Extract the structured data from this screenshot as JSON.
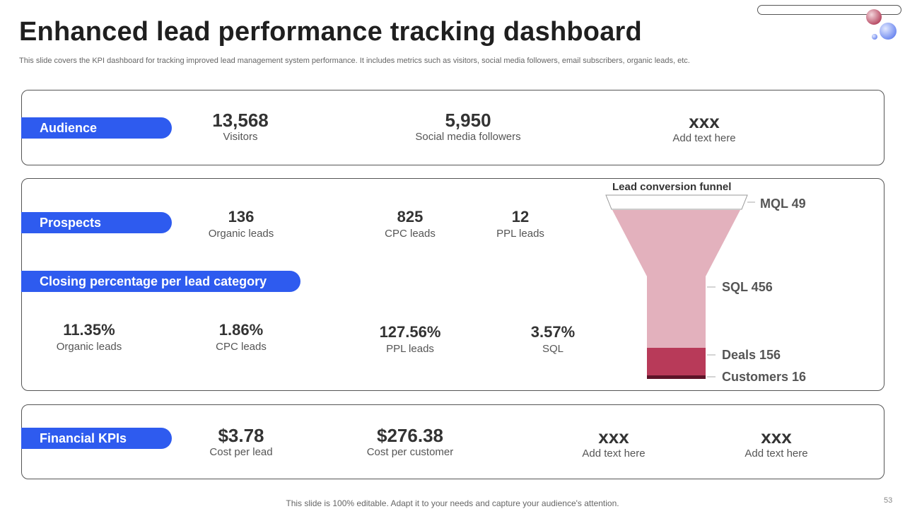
{
  "header": {
    "title": "Enhanced lead performance tracking dashboard",
    "subtitle": "This slide covers the KPI dashboard for tracking improved lead management system performance. It includes metrics such as visitors, social media followers, email subscribers, organic leads, etc."
  },
  "audience": {
    "label": "Audience",
    "metrics": [
      {
        "value": "13,568",
        "label": "Visitors"
      },
      {
        "value": "5,950",
        "label": "Social media followers"
      },
      {
        "value": "xxx",
        "label": "Add text here"
      }
    ]
  },
  "prospects": {
    "label": "Prospects",
    "metrics": [
      {
        "value": "136",
        "label": "Organic leads"
      },
      {
        "value": "825",
        "label": "CPC leads"
      },
      {
        "value": "12",
        "label": "PPL leads"
      }
    ]
  },
  "closing": {
    "label": "Closing percentage per lead category",
    "metrics": [
      {
        "value": "11.35%",
        "label": "Organic leads"
      },
      {
        "value": "1.86%",
        "label": "CPC leads"
      },
      {
        "value": "127.56%",
        "label": "PPL leads"
      },
      {
        "value": "3.57%",
        "label": "SQL"
      }
    ]
  },
  "funnel": {
    "title": "Lead conversion funnel",
    "stages": [
      {
        "label": "MQL 49"
      },
      {
        "label": "SQL 456"
      },
      {
        "label": "Deals 156"
      },
      {
        "label": "Customers 16"
      }
    ],
    "colors": {
      "light": "#e3b1bd",
      "mid": "#b83a59",
      "dark": "#5c1428"
    }
  },
  "financial": {
    "label": "Financial KPIs",
    "metrics": [
      {
        "value": "$3.78",
        "label": "Cost per lead"
      },
      {
        "value": "$276.38",
        "label": "Cost per customer"
      },
      {
        "value": "xxx",
        "label": "Add text here"
      },
      {
        "value": "xxx",
        "label": "Add text here"
      }
    ]
  },
  "footer": {
    "note": "This slide is 100% editable. Adapt it to your needs and capture your audience's attention.",
    "page_number": "53"
  },
  "colors": {
    "accent": "#2e5bef"
  }
}
